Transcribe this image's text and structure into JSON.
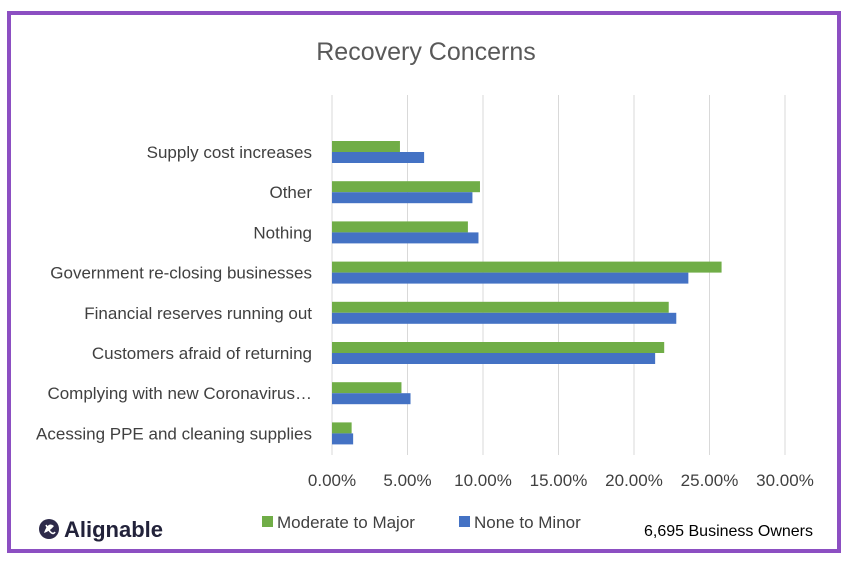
{
  "chart_data": {
    "type": "bar",
    "orientation": "horizontal",
    "title": "Recovery Concerns",
    "categories": [
      "Supply cost increases",
      "Other",
      "Nothing",
      "Government re-closing businesses",
      "Financial reserves running out",
      "Customers afraid of returning",
      "Complying with new Coronavirus…",
      "Acessing PPE and cleaning supplies"
    ],
    "series": [
      {
        "name": "Moderate to Major",
        "color": "#70ad47",
        "values": [
          4.5,
          9.8,
          9.0,
          25.8,
          22.3,
          22.0,
          4.6,
          1.3
        ]
      },
      {
        "name": "None to Minor",
        "color": "#4472c4",
        "values": [
          6.1,
          9.3,
          9.7,
          23.6,
          22.8,
          21.4,
          5.2,
          1.4
        ]
      }
    ],
    "xlim": [
      0,
      30
    ],
    "ticks": [
      "0.00%",
      "5.00%",
      "10.00%",
      "15.00%",
      "20.00%",
      "25.00%",
      "30.00%"
    ],
    "grid": true,
    "legend": "bottom"
  },
  "logo_text": "Alignable",
  "note": "6,695 Business Owners",
  "colors": {
    "border": "#8c4fc2",
    "grid": "#d9d9d9"
  }
}
